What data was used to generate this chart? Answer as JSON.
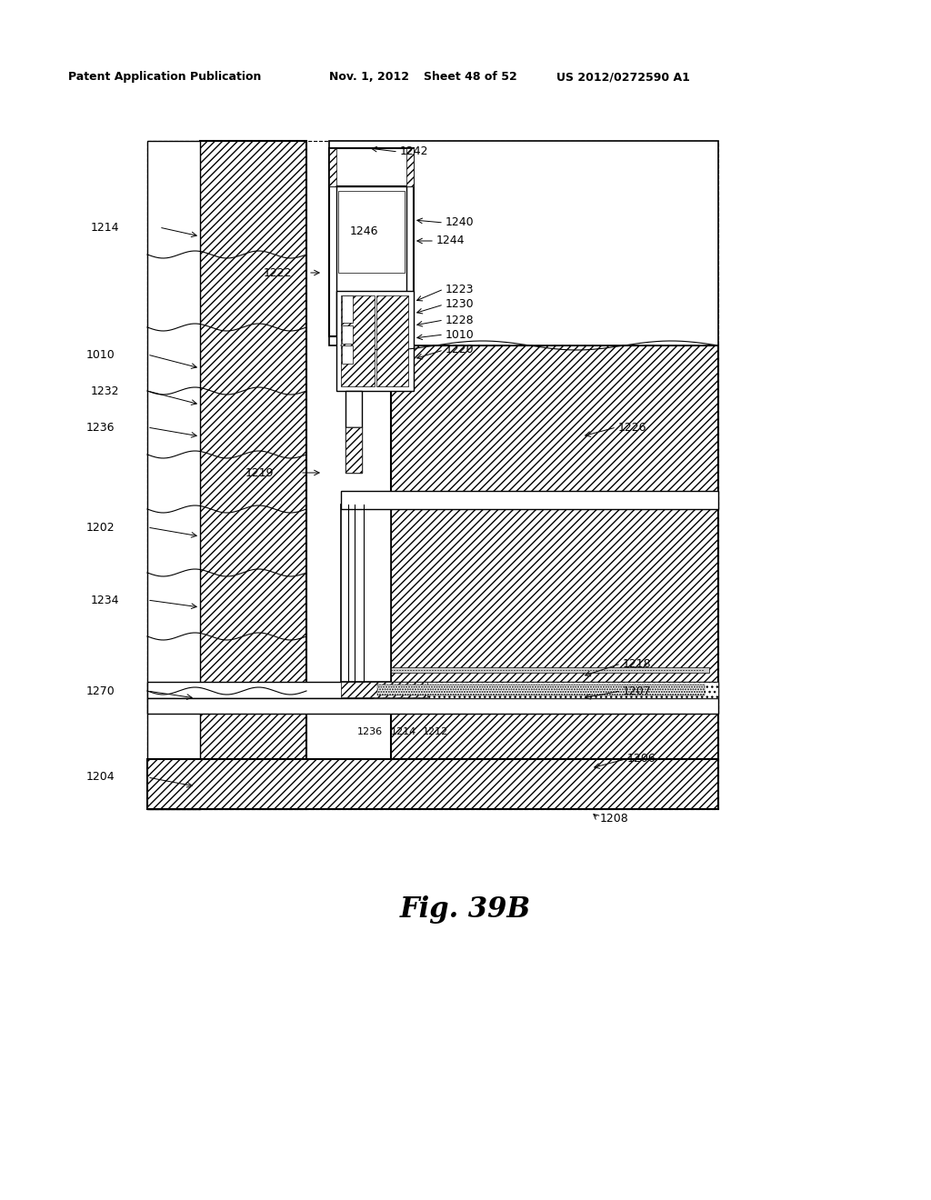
{
  "bg_color": "#ffffff",
  "header_text": "Patent Application Publication",
  "header_date": "Nov. 1, 2012",
  "header_sheet": "Sheet 48 of 52",
  "header_patent": "US 2012/0272590 A1",
  "figure_label": "Fig. 39B"
}
